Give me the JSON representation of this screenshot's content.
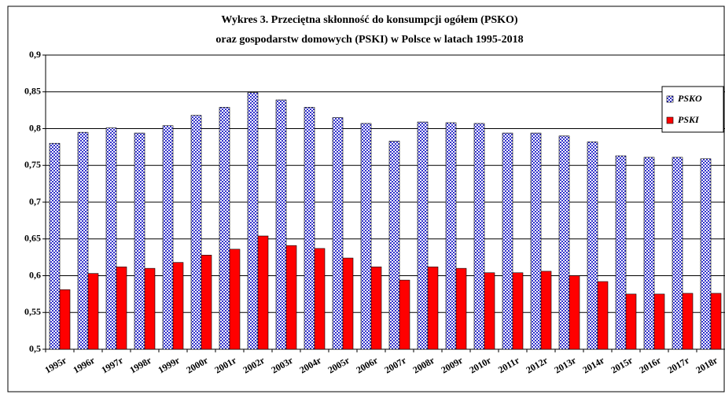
{
  "chart_data": {
    "type": "bar",
    "title": [
      "Wykres 3. Przeciętna skłonność do konsumpcji ogółem (PSKO)",
      "oraz gospodarstw domowych (PSKI) w Polsce w latach 1995-2018"
    ],
    "categories": [
      "1995r",
      "1996r",
      "1997r",
      "1998r",
      "1999r",
      "2000r",
      "2001r",
      "2002r",
      "2003r",
      "2004r",
      "2005r",
      "2006r",
      "2007r",
      "2008r",
      "2009r",
      "2010r",
      "2011r",
      "2012r",
      "2013r",
      "2014r",
      "2015r",
      "2016r",
      "2017r",
      "2018r"
    ],
    "series": [
      {
        "name": "PSKO",
        "color": "#3333cc",
        "values": [
          0.78,
          0.795,
          0.801,
          0.794,
          0.804,
          0.818,
          0.829,
          0.849,
          0.839,
          0.829,
          0.815,
          0.807,
          0.783,
          0.809,
          0.808,
          0.807,
          0.794,
          0.794,
          0.79,
          0.782,
          0.763,
          0.761,
          0.761,
          0.759
        ]
      },
      {
        "name": "PSKI",
        "color": "#ff0000",
        "values": [
          0.581,
          0.603,
          0.612,
          0.61,
          0.618,
          0.628,
          0.636,
          0.654,
          0.641,
          0.637,
          0.624,
          0.612,
          0.594,
          0.612,
          0.61,
          0.604,
          0.604,
          0.606,
          0.6,
          0.592,
          0.575,
          0.575,
          0.576,
          0.576
        ]
      }
    ],
    "ylim": [
      0.5,
      0.9
    ],
    "yticks": [
      {
        "value": 0.5,
        "label": "0,5"
      },
      {
        "value": 0.55,
        "label": "0,55"
      },
      {
        "value": 0.6,
        "label": "0,6"
      },
      {
        "value": 0.65,
        "label": "0,65"
      },
      {
        "value": 0.7,
        "label": "0,7"
      },
      {
        "value": 0.75,
        "label": "0,75"
      },
      {
        "value": 0.8,
        "label": "0,8"
      },
      {
        "value": 0.85,
        "label": "0,85"
      },
      {
        "value": 0.9,
        "label": "0,9"
      }
    ],
    "grid": true,
    "legend": "top-right"
  }
}
